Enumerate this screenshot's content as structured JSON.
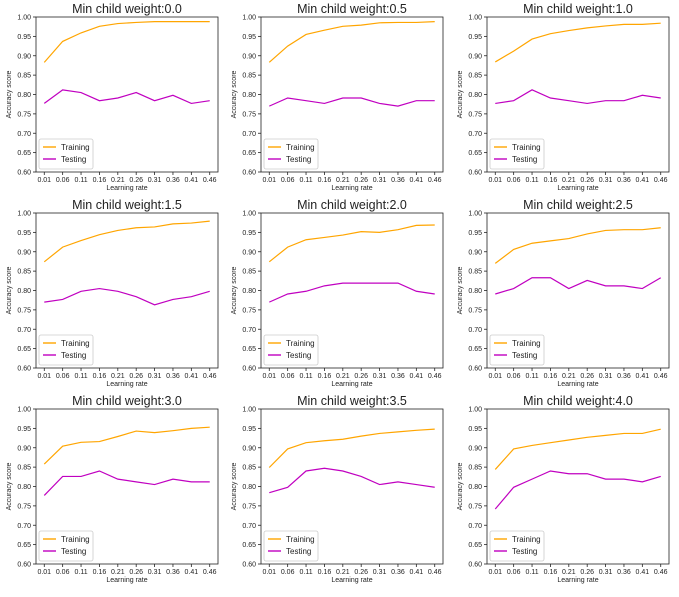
{
  "chart_data": [
    {
      "type": "line",
      "title": "Min child weight:0.0",
      "xlabel": "Learning rate",
      "ylabel": "Accuracy score",
      "x": [
        0.01,
        0.06,
        0.11,
        0.16,
        0.21,
        0.26,
        0.31,
        0.36,
        0.41,
        0.46
      ],
      "ylim": [
        0.6,
        1.0
      ],
      "legend": "lower-left",
      "series": [
        {
          "name": "Training",
          "color": "#FFA500",
          "values": [
            0.883,
            0.937,
            0.959,
            0.976,
            0.983,
            0.986,
            0.988,
            0.988,
            0.988,
            0.988
          ]
        },
        {
          "name": "Testing",
          "color": "#C000C0",
          "values": [
            0.777,
            0.812,
            0.805,
            0.784,
            0.791,
            0.805,
            0.784,
            0.798,
            0.777,
            0.784
          ]
        }
      ]
    },
    {
      "type": "line",
      "title": "Min child weight:0.5",
      "xlabel": "Learning rate",
      "ylabel": "Accuracy score",
      "x": [
        0.01,
        0.06,
        0.11,
        0.16,
        0.21,
        0.26,
        0.31,
        0.36,
        0.41,
        0.46
      ],
      "ylim": [
        0.6,
        1.0
      ],
      "legend": "lower-left",
      "series": [
        {
          "name": "Training",
          "color": "#FFA500",
          "values": [
            0.883,
            0.925,
            0.955,
            0.966,
            0.976,
            0.979,
            0.985,
            0.986,
            0.986,
            0.988
          ]
        },
        {
          "name": "Testing",
          "color": "#C000C0",
          "values": [
            0.77,
            0.791,
            0.784,
            0.777,
            0.791,
            0.791,
            0.777,
            0.77,
            0.784,
            0.784
          ]
        }
      ]
    },
    {
      "type": "line",
      "title": "Min child weight:1.0",
      "xlabel": "Learning rate",
      "ylabel": "Accuracy score",
      "x": [
        0.01,
        0.06,
        0.11,
        0.16,
        0.21,
        0.26,
        0.31,
        0.36,
        0.41,
        0.46
      ],
      "ylim": [
        0.6,
        1.0
      ],
      "legend": "lower-left",
      "series": [
        {
          "name": "Training",
          "color": "#FFA500",
          "values": [
            0.884,
            0.912,
            0.943,
            0.957,
            0.965,
            0.972,
            0.977,
            0.981,
            0.981,
            0.984
          ]
        },
        {
          "name": "Testing",
          "color": "#C000C0",
          "values": [
            0.777,
            0.784,
            0.812,
            0.791,
            0.784,
            0.777,
            0.784,
            0.784,
            0.798,
            0.791
          ]
        }
      ]
    },
    {
      "type": "line",
      "title": "Min child weight:1.5",
      "xlabel": "Learning rate",
      "ylabel": "Accuracy score",
      "x": [
        0.01,
        0.06,
        0.11,
        0.16,
        0.21,
        0.26,
        0.31,
        0.36,
        0.41,
        0.46
      ],
      "ylim": [
        0.6,
        1.0
      ],
      "legend": "lower-left",
      "series": [
        {
          "name": "Training",
          "color": "#FFA500",
          "values": [
            0.874,
            0.912,
            0.929,
            0.944,
            0.955,
            0.962,
            0.964,
            0.972,
            0.974,
            0.979
          ]
        },
        {
          "name": "Testing",
          "color": "#C000C0",
          "values": [
            0.77,
            0.777,
            0.798,
            0.805,
            0.798,
            0.784,
            0.763,
            0.777,
            0.784,
            0.798
          ]
        }
      ]
    },
    {
      "type": "line",
      "title": "Min child weight:2.0",
      "xlabel": "Learning rate",
      "ylabel": "Accuracy score",
      "x": [
        0.01,
        0.06,
        0.11,
        0.16,
        0.21,
        0.26,
        0.31,
        0.36,
        0.41,
        0.46
      ],
      "ylim": [
        0.6,
        1.0
      ],
      "legend": "lower-left",
      "series": [
        {
          "name": "Training",
          "color": "#FFA500",
          "values": [
            0.874,
            0.912,
            0.931,
            0.937,
            0.943,
            0.952,
            0.95,
            0.957,
            0.968,
            0.969
          ]
        },
        {
          "name": "Testing",
          "color": "#C000C0",
          "values": [
            0.77,
            0.791,
            0.798,
            0.812,
            0.819,
            0.819,
            0.819,
            0.819,
            0.798,
            0.791
          ]
        }
      ]
    },
    {
      "type": "line",
      "title": "Min child weight:2.5",
      "xlabel": "Learning rate",
      "ylabel": "Accuracy score",
      "x": [
        0.01,
        0.06,
        0.11,
        0.16,
        0.21,
        0.26,
        0.31,
        0.36,
        0.41,
        0.46
      ],
      "ylim": [
        0.6,
        1.0
      ],
      "legend": "lower-left",
      "series": [
        {
          "name": "Training",
          "color": "#FFA500",
          "values": [
            0.87,
            0.906,
            0.922,
            0.928,
            0.934,
            0.946,
            0.955,
            0.957,
            0.957,
            0.962
          ]
        },
        {
          "name": "Testing",
          "color": "#C000C0",
          "values": [
            0.791,
            0.805,
            0.833,
            0.833,
            0.805,
            0.826,
            0.812,
            0.812,
            0.805,
            0.833
          ]
        }
      ]
    },
    {
      "type": "line",
      "title": "Min child weight:3.0",
      "xlabel": "Learning rate",
      "ylabel": "Accuracy score",
      "x": [
        0.01,
        0.06,
        0.11,
        0.16,
        0.21,
        0.26,
        0.31,
        0.36,
        0.41,
        0.46
      ],
      "ylim": [
        0.6,
        1.0
      ],
      "legend": "lower-left",
      "series": [
        {
          "name": "Training",
          "color": "#FFA500",
          "values": [
            0.858,
            0.904,
            0.914,
            0.916,
            0.929,
            0.943,
            0.939,
            0.944,
            0.95,
            0.953
          ]
        },
        {
          "name": "Testing",
          "color": "#C000C0",
          "values": [
            0.777,
            0.826,
            0.826,
            0.84,
            0.819,
            0.812,
            0.805,
            0.819,
            0.812,
            0.812
          ]
        }
      ]
    },
    {
      "type": "line",
      "title": "Min child weight:3.5",
      "xlabel": "Learning rate",
      "ylabel": "Accuracy score",
      "x": [
        0.01,
        0.06,
        0.11,
        0.16,
        0.21,
        0.26,
        0.31,
        0.36,
        0.41,
        0.46
      ],
      "ylim": [
        0.6,
        1.0
      ],
      "legend": "lower-left",
      "series": [
        {
          "name": "Training",
          "color": "#FFA500",
          "values": [
            0.849,
            0.897,
            0.913,
            0.918,
            0.922,
            0.93,
            0.937,
            0.941,
            0.945,
            0.948
          ]
        },
        {
          "name": "Testing",
          "color": "#C000C0",
          "values": [
            0.784,
            0.798,
            0.84,
            0.847,
            0.84,
            0.826,
            0.805,
            0.812,
            0.805,
            0.798
          ]
        }
      ]
    },
    {
      "type": "line",
      "title": "Min child weight:4.0",
      "xlabel": "Learning rate",
      "ylabel": "Accuracy score",
      "x": [
        0.01,
        0.06,
        0.11,
        0.16,
        0.21,
        0.26,
        0.31,
        0.36,
        0.41,
        0.46
      ],
      "ylim": [
        0.6,
        1.0
      ],
      "legend": "lower-left",
      "series": [
        {
          "name": "Training",
          "color": "#FFA500",
          "values": [
            0.844,
            0.897,
            0.906,
            0.913,
            0.92,
            0.927,
            0.932,
            0.937,
            0.937,
            0.948
          ]
        },
        {
          "name": "Testing",
          "color": "#C000C0",
          "values": [
            0.742,
            0.798,
            0.819,
            0.84,
            0.833,
            0.833,
            0.819,
            0.819,
            0.812,
            0.826
          ]
        }
      ]
    }
  ],
  "x_tick_labels": [
    "0.01",
    "0.06",
    "0.11",
    "0.16",
    "0.21",
    "0.26",
    "0.31",
    "0.36",
    "0.41",
    "0.46"
  ],
  "y_tick_labels": [
    "0.60",
    "0.65",
    "0.70",
    "0.75",
    "0.80",
    "0.85",
    "0.90",
    "0.95",
    "1.00"
  ]
}
